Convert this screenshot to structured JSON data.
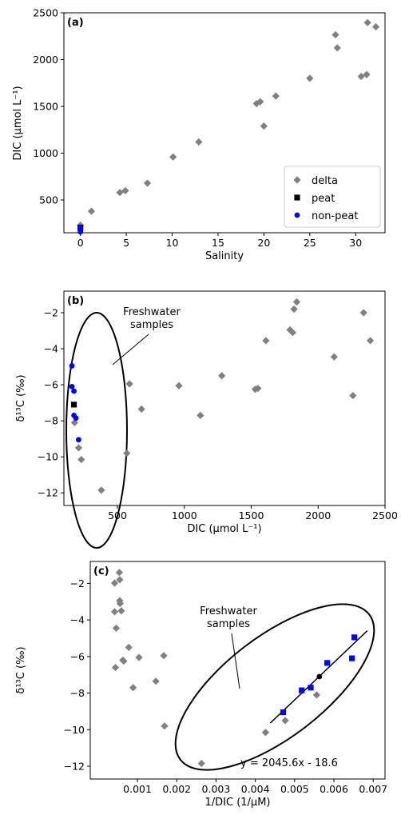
{
  "chart_data": [
    {
      "type": "scatter",
      "panel_label": "(a)",
      "xlabel": "Salinity",
      "ylabel": "DIC (µmol L⁻¹)",
      "xlim": [
        -1.8,
        33.2
      ],
      "ylim": [
        150,
        2500
      ],
      "xticks": [
        0,
        5,
        10,
        15,
        20,
        25,
        30
      ],
      "yticks": [
        500,
        1000,
        1500,
        2000,
        2500
      ],
      "legend": {
        "position": "lower-right"
      },
      "series": [
        {
          "name": "delta",
          "color": "#808080",
          "marker": "diamond",
          "points": [
            [
              0,
              230
            ],
            [
              1.2,
              380
            ],
            [
              4.3,
              580
            ],
            [
              4.9,
              600
            ],
            [
              7.3,
              680
            ],
            [
              10.1,
              960
            ],
            [
              12.9,
              1120
            ],
            [
              19.2,
              1530
            ],
            [
              19.6,
              1550
            ],
            [
              20.0,
              1290
            ],
            [
              21.3,
              1610
            ],
            [
              25.0,
              1800
            ],
            [
              27.8,
              2265
            ],
            [
              28.0,
              2125
            ],
            [
              30.6,
              1820
            ],
            [
              31.2,
              1840
            ],
            [
              31.3,
              2395
            ],
            [
              32.2,
              2350
            ]
          ]
        },
        {
          "name": "peat",
          "color": "#000000",
          "marker": "square",
          "points": [
            [
              0,
              205
            ]
          ]
        },
        {
          "name": "non-peat",
          "color": "#0000ff",
          "marker": "circle",
          "points": [
            [
              0,
              160
            ],
            [
              0,
              170
            ],
            [
              0,
              175
            ],
            [
              0,
              185
            ],
            [
              0,
              195
            ],
            [
              0,
              210
            ]
          ]
        }
      ]
    },
    {
      "type": "scatter",
      "panel_label": "(b)",
      "xlabel": "DIC (µmol L⁻¹)",
      "ylabel": "δ¹³C (‰)",
      "xlim": [
        100,
        2500
      ],
      "ylim": [
        -12.7,
        -0.8
      ],
      "xticks": [
        500,
        1000,
        1500,
        2000,
        2500
      ],
      "yticks": [
        -2,
        -4,
        -6,
        -8,
        -10,
        -12
      ],
      "annotation": "Freshwater samples",
      "series": [
        {
          "name": "delta",
          "color": "#808080",
          "marker": "diamond",
          "points": [
            [
              380,
              -11.85
            ],
            [
              230,
              -10.15
            ],
            [
              210,
              -9.5
            ],
            [
              180,
              -8.1
            ],
            [
              570,
              -9.8
            ],
            [
              590,
              -5.95
            ],
            [
              680,
              -7.35
            ],
            [
              960,
              -6.05
            ],
            [
              1120,
              -7.7
            ],
            [
              1280,
              -5.5
            ],
            [
              1530,
              -6.25
            ],
            [
              1550,
              -6.2
            ],
            [
              1610,
              -3.55
            ],
            [
              1790,
              -2.95
            ],
            [
              1810,
              -3.1
            ],
            [
              1820,
              -1.8
            ],
            [
              1840,
              -1.4
            ],
            [
              2120,
              -4.45
            ],
            [
              2260,
              -6.6
            ],
            [
              2340,
              -2.0
            ],
            [
              2390,
              -3.55
            ]
          ]
        },
        {
          "name": "peat",
          "color": "#000000",
          "marker": "square",
          "points": [
            [
              175,
              -7.1
            ]
          ]
        },
        {
          "name": "non-peat",
          "color": "#0000ff",
          "marker": "circle",
          "points": [
            [
              160,
              -4.95
            ],
            [
              160,
              -6.1
            ],
            [
              175,
              -6.35
            ],
            [
              175,
              -7.7
            ],
            [
              190,
              -7.85
            ],
            [
              210,
              -9.05
            ]
          ]
        }
      ]
    },
    {
      "type": "scatter",
      "panel_label": "(c)",
      "xlabel": "1/DIC (1/µM)",
      "ylabel": "δ¹³C (‰)",
      "xlim": [
        -0.0002,
        0.0073
      ],
      "ylim": [
        -12.7,
        -0.8
      ],
      "xticks": [
        0.001,
        0.002,
        0.003,
        0.004,
        0.005,
        0.006,
        0.007
      ],
      "yticks": [
        -2,
        -4,
        -6,
        -8,
        -10,
        -12
      ],
      "annotation": "Freshwater samples",
      "equation": "y = 2045.6x - 18.6",
      "fit_line": {
        "slope": 2045.6,
        "intercept": -18.6,
        "x_range": [
          0.00438,
          0.00685
        ]
      },
      "series": [
        {
          "name": "delta",
          "color": "#808080",
          "marker": "diamond",
          "points": [
            [
              0.00042,
              -1.98
            ],
            [
              0.00054,
              -1.4
            ],
            [
              0.00055,
              -1.8
            ],
            [
              0.00055,
              -2.95
            ],
            [
              0.00056,
              -3.1
            ],
            [
              0.00059,
              -3.5
            ],
            [
              0.00042,
              -3.55
            ],
            [
              0.00046,
              -4.45
            ],
            [
              0.00044,
              -6.6
            ],
            [
              0.00063,
              -6.2
            ],
            [
              0.00065,
              -6.25
            ],
            [
              0.00078,
              -5.5
            ],
            [
              0.00089,
              -7.7
            ],
            [
              0.00104,
              -6.05
            ],
            [
              0.00147,
              -7.35
            ],
            [
              0.00167,
              -5.95
            ],
            [
              0.00169,
              -9.8
            ],
            [
              0.00263,
              -11.85
            ],
            [
              0.00426,
              -10.15
            ],
            [
              0.00476,
              -9.5
            ],
            [
              0.00556,
              -8.1
            ]
          ]
        },
        {
          "name": "peat",
          "color": "#000000",
          "marker": "circle",
          "points": [
            [
              0.00563,
              -7.1
            ]
          ]
        },
        {
          "name": "non-peat",
          "color": "#0000ff",
          "marker": "square",
          "points": [
            [
              0.00471,
              -9.05
            ],
            [
              0.00518,
              -7.85
            ],
            [
              0.00541,
              -7.7
            ],
            [
              0.00583,
              -6.35
            ],
            [
              0.00646,
              -6.1
            ],
            [
              0.00652,
              -4.95
            ]
          ]
        }
      ]
    }
  ]
}
